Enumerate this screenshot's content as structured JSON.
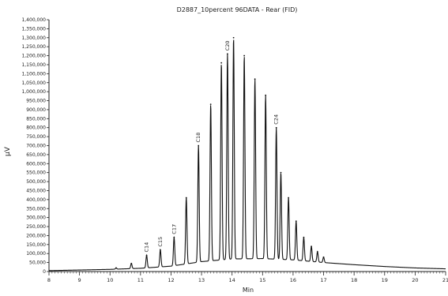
{
  "chart_data": {
    "type": "line",
    "title": "D2887_10percent 96DATA - Rear (FID)",
    "xlabel": "Min",
    "ylabel": "µV",
    "xlim": [
      8,
      21
    ],
    "ylim": [
      0,
      1400000
    ],
    "x_ticks": [
      "8",
      "9",
      "10",
      "11",
      "12",
      "13",
      "14",
      "15",
      "16",
      "17",
      "18",
      "19",
      "20",
      "21"
    ],
    "y_ticks": [
      "0",
      "50,000",
      "100,000",
      "150,000",
      "200,000",
      "250,000",
      "300,000",
      "350,000",
      "400,000",
      "450,000",
      "500,000",
      "550,000",
      "600,000",
      "650,000",
      "700,000",
      "750,000",
      "800,000",
      "850,000",
      "900,000",
      "950,000",
      "1,000,000",
      "1,050,000",
      "1,100,000",
      "1,150,000",
      "1,200,000",
      "1,250,000",
      "1,300,000",
      "1,350,000",
      "1,400,000"
    ],
    "grid": false,
    "baseline": [
      [
        8,
        5000
      ],
      [
        10,
        12000
      ],
      [
        11,
        18000
      ],
      [
        12,
        30000
      ],
      [
        13,
        55000
      ],
      [
        14,
        70000
      ],
      [
        15,
        72000
      ],
      [
        16,
        65000
      ],
      [
        17,
        50000
      ],
      [
        18,
        38000
      ],
      [
        19,
        28000
      ],
      [
        20,
        20000
      ],
      [
        21,
        15000
      ]
    ],
    "peaks": [
      {
        "x": 10.2,
        "y": 20000
      },
      {
        "x": 10.7,
        "y": 45000
      },
      {
        "x": 11.2,
        "y": 90000,
        "label": "C14"
      },
      {
        "x": 11.65,
        "y": 120000,
        "label": "C15"
      },
      {
        "x": 12.1,
        "y": 190000,
        "label": "C17"
      },
      {
        "x": 12.5,
        "y": 410000
      },
      {
        "x": 12.9,
        "y": 700000,
        "label": "C18"
      },
      {
        "x": 13.3,
        "y": 930000
      },
      {
        "x": 13.65,
        "y": 1160000
      },
      {
        "x": 13.85,
        "y": 1210000,
        "label": "C20"
      },
      {
        "x": 14.05,
        "y": 1300000
      },
      {
        "x": 14.4,
        "y": 1200000
      },
      {
        "x": 14.75,
        "y": 1070000
      },
      {
        "x": 15.1,
        "y": 980000
      },
      {
        "x": 15.45,
        "y": 800000,
        "label": "C24"
      },
      {
        "x": 15.6,
        "y": 550000
      },
      {
        "x": 15.85,
        "y": 410000
      },
      {
        "x": 16.1,
        "y": 280000
      },
      {
        "x": 16.35,
        "y": 190000
      },
      {
        "x": 16.6,
        "y": 140000
      },
      {
        "x": 16.8,
        "y": 110000
      },
      {
        "x": 17.0,
        "y": 80000
      }
    ]
  }
}
